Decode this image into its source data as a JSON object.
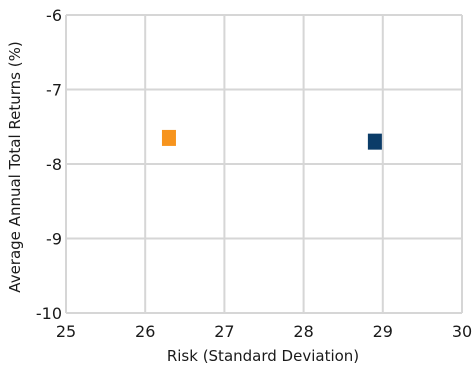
{
  "chart_data": {
    "type": "scatter",
    "title": "",
    "xlabel": "Risk (Standard Deviation)",
    "ylabel": "Average Annual Total Returns (%)",
    "xlim": [
      25,
      30
    ],
    "ylim": [
      -10,
      -6
    ],
    "x_ticks": [
      "25",
      "26",
      "27",
      "28",
      "29",
      "30"
    ],
    "y_ticks": [
      "-6",
      "-7",
      "-8",
      "-9",
      "-10"
    ],
    "grid": true,
    "legend": "none",
    "points": [
      {
        "x": 26.3,
        "y": -7.65,
        "color": "#f7941d",
        "marker": "square"
      },
      {
        "x": 28.9,
        "y": -7.7,
        "color": "#0b3c68",
        "marker": "square"
      }
    ]
  }
}
